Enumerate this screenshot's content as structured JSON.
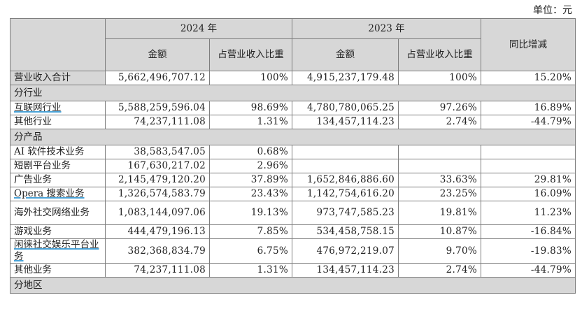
{
  "unit_label": "单位：元",
  "header": {
    "year1": "2024 年",
    "year2": "2023 年",
    "amount": "金额",
    "ratio": "占营业收入比重",
    "yoy": "同比增减"
  },
  "total": {
    "label": "营业收入合计",
    "amt2024": "5,662,496,707.12",
    "pct2024": "100%",
    "amt2023": "4,915,237,179.48",
    "pct2023": "100%",
    "yoy": "15.20%"
  },
  "section_industry": "分行业",
  "industry_rows": [
    {
      "label": "互联网行业",
      "amt2024": "5,588,259,596.04",
      "pct2024": "98.69%",
      "amt2023": "4,780,780,065.25",
      "pct2023": "97.26%",
      "yoy": "16.89%"
    },
    {
      "label": "其他行业",
      "amt2024": "74,237,111.08",
      "pct2024": "1.31%",
      "amt2023": "134,457,114.23",
      "pct2023": "2.74%",
      "yoy": "-44.79%"
    }
  ],
  "section_product": "分产品",
  "product_rows": [
    {
      "label": "AI 软件技术业务",
      "amt2024": "38,583,547.05",
      "pct2024": "0.68%",
      "amt2023": "",
      "pct2023": "",
      "yoy": ""
    },
    {
      "label": "短剧平台业务",
      "amt2024": "167,630,217.02",
      "pct2024": "2.96%",
      "amt2023": "",
      "pct2023": "",
      "yoy": ""
    },
    {
      "label": "广告业务",
      "amt2024": "2,145,479,120.20",
      "pct2024": "37.89%",
      "amt2023": "1,652,846,886.60",
      "pct2023": "33.63%",
      "yoy": "29.81%"
    },
    {
      "label": "Opera 搜索业务",
      "amt2024": "1,326,574,583.79",
      "pct2024": "23.43%",
      "amt2023": "1,142,754,616.20",
      "pct2023": "23.25%",
      "yoy": "16.09%"
    },
    {
      "label": "海外社交网络业务",
      "amt2024": "1,083,144,097.06",
      "pct2024": "19.13%",
      "amt2023": "973,747,585.23",
      "pct2023": "19.81%",
      "yoy": "11.23%"
    },
    {
      "label": "游戏业务",
      "amt2024": "444,479,196.13",
      "pct2024": "7.85%",
      "amt2023": "534,458,758.15",
      "pct2023": "10.87%",
      "yoy": "-16.84%"
    },
    {
      "label": "闲徕社交娱乐平台业务",
      "amt2024": "382,368,834.79",
      "pct2024": "6.75%",
      "amt2023": "476,972,219.07",
      "pct2023": "9.70%",
      "yoy": "-19.83%"
    },
    {
      "label": "其他业务",
      "amt2024": "74,237,111.08",
      "pct2024": "1.31%",
      "amt2023": "134,457,114.23",
      "pct2023": "2.74%",
      "yoy": "-44.79%"
    }
  ],
  "section_region": "分地区"
}
